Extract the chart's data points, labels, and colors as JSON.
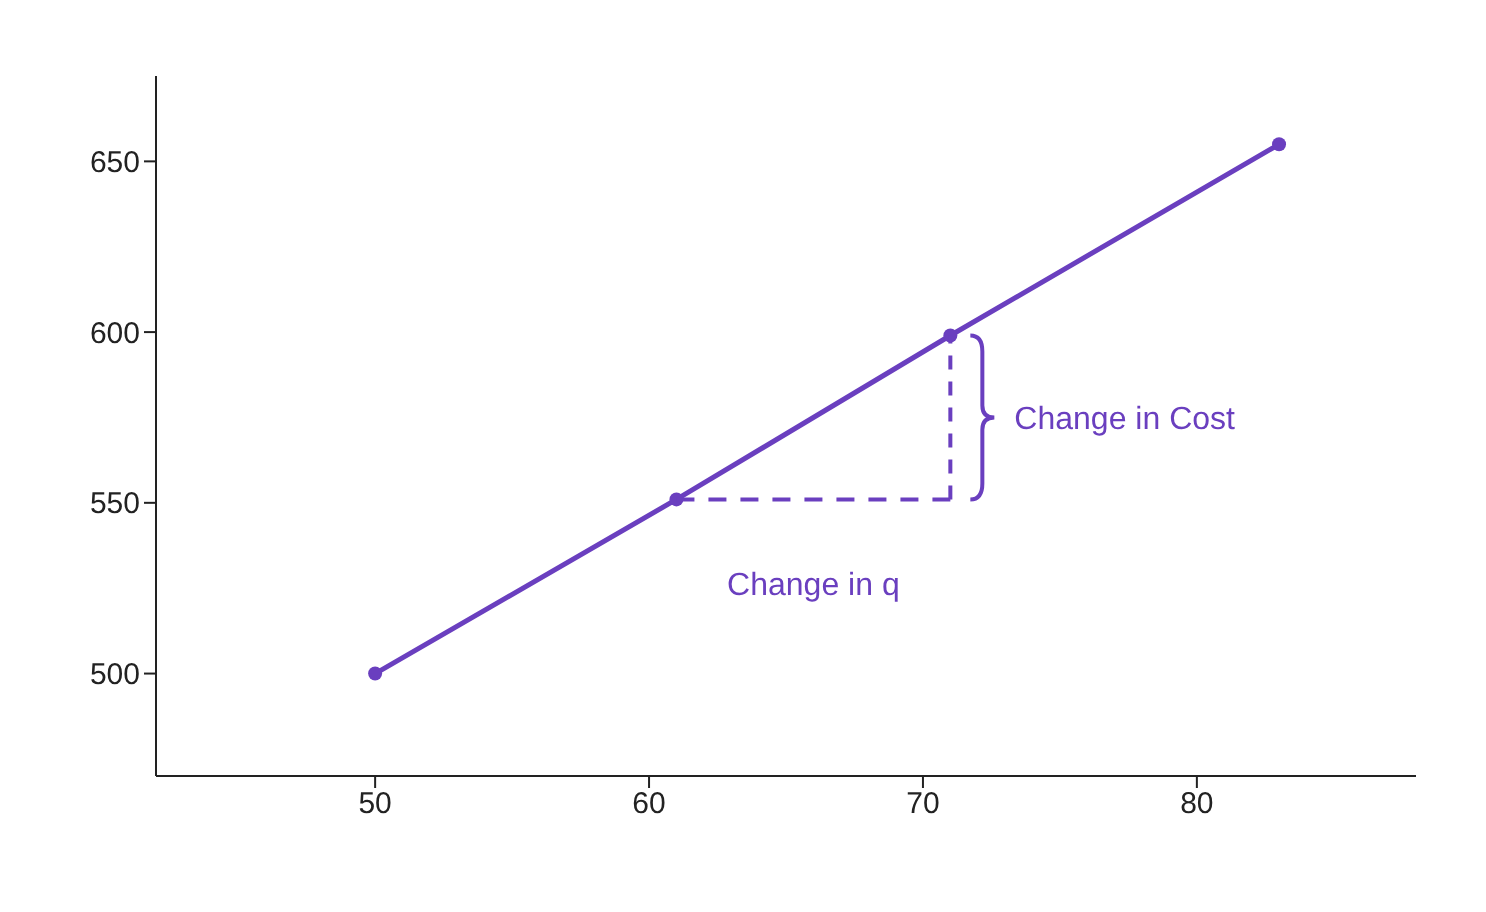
{
  "chart_data": {
    "type": "line",
    "x": [
      50,
      61,
      71,
      83
    ],
    "series": [
      {
        "color": "#6a3fbf",
        "values": [
          500,
          551,
          599,
          655
        ]
      }
    ],
    "xlim": [
      42,
      88
    ],
    "ylim": [
      470,
      675
    ],
    "xticks": [
      50,
      60,
      70,
      80
    ],
    "yticks": [
      500,
      550,
      600,
      650
    ],
    "grid": false,
    "legend": false,
    "marker": "circle",
    "line_style": "solid",
    "annotations": [
      "Change in Cost",
      "Change in q"
    ]
  }
}
